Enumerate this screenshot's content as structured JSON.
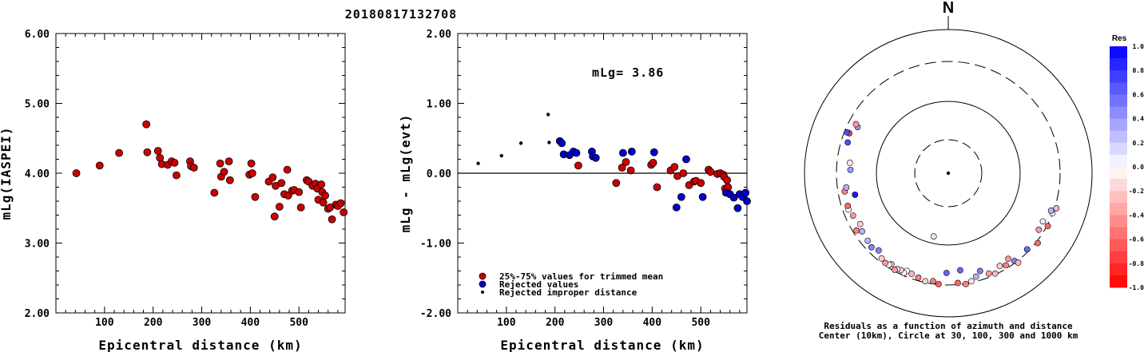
{
  "title": "20180817132708",
  "colors": {
    "red": "#cc0000",
    "blue": "#0000cc",
    "black": "#000000"
  },
  "chart_data": [
    {
      "type": "scatter",
      "xlabel": "Epicentral distance (km)",
      "ylabel": "mLg(IASPEI)",
      "xlim": [
        0,
        595
      ],
      "ylim": [
        2.0,
        6.0
      ],
      "xticks": [
        "100",
        "200",
        "300",
        "400",
        "500"
      ],
      "yticks": [
        "2.00",
        "3.00",
        "4.00",
        "5.00",
        "6.00"
      ],
      "points": [
        [
          42,
          4.0
        ],
        [
          90,
          4.11
        ],
        [
          130,
          4.29
        ],
        [
          186,
          4.7
        ],
        [
          188,
          4.3
        ],
        [
          210,
          4.32
        ],
        [
          214,
          4.22
        ],
        [
          218,
          4.13
        ],
        [
          230,
          4.12
        ],
        [
          238,
          4.17
        ],
        [
          244,
          4.15
        ],
        [
          248,
          3.97
        ],
        [
          276,
          4.17
        ],
        [
          278,
          4.1
        ],
        [
          284,
          4.08
        ],
        [
          326,
          3.72
        ],
        [
          338,
          4.14
        ],
        [
          340,
          3.95
        ],
        [
          346,
          4.02
        ],
        [
          356,
          4.17
        ],
        [
          358,
          3.9
        ],
        [
          398,
          3.98
        ],
        [
          402,
          4.14
        ],
        [
          404,
          4.0
        ],
        [
          410,
          3.66
        ],
        [
          438,
          3.88
        ],
        [
          446,
          3.94
        ],
        [
          450,
          3.38
        ],
        [
          452,
          3.82
        ],
        [
          460,
          3.52
        ],
        [
          464,
          3.86
        ],
        [
          470,
          3.7
        ],
        [
          476,
          4.05
        ],
        [
          478,
          3.68
        ],
        [
          486,
          3.75
        ],
        [
          490,
          3.76
        ],
        [
          500,
          3.73
        ],
        [
          504,
          3.51
        ],
        [
          516,
          3.9
        ],
        [
          520,
          3.88
        ],
        [
          528,
          3.82
        ],
        [
          534,
          3.85
        ],
        [
          538,
          3.78
        ],
        [
          540,
          3.62
        ],
        [
          546,
          3.84
        ],
        [
          548,
          3.73
        ],
        [
          550,
          3.58
        ],
        [
          554,
          3.68
        ],
        [
          560,
          3.49
        ],
        [
          564,
          3.51
        ],
        [
          568,
          3.34
        ],
        [
          576,
          3.55
        ],
        [
          580,
          3.53
        ],
        [
          586,
          3.57
        ],
        [
          592,
          3.44
        ]
      ]
    },
    {
      "type": "scatter",
      "xlabel": "Epicentral distance (km)",
      "ylabel": "mLg - mLg(evt)",
      "xlim": [
        0,
        595
      ],
      "ylim": [
        -2.0,
        2.0
      ],
      "xticks": [
        "100",
        "200",
        "300",
        "400",
        "500"
      ],
      "yticks": [
        "-2.00",
        "-1.00",
        "0.00",
        "1.00",
        "2.00"
      ],
      "annotation": "mLg= 3.86",
      "legend": [
        {
          "label": "25%-75% values for trimmed mean",
          "color": "#cc0000",
          "marker": "big"
        },
        {
          "label": "Rejected values",
          "color": "#0000cc",
          "marker": "big"
        },
        {
          "label": "Rejected improper distance",
          "color": "#000000",
          "marker": "small"
        }
      ],
      "series": [
        {
          "name": "25%-75% values for trimmed mean",
          "color": "#cc0000",
          "points": [
            [
              248,
              0.11
            ],
            [
              326,
              -0.14
            ],
            [
              338,
              0.08
            ],
            [
              346,
              0.16
            ],
            [
              356,
              0.04
            ],
            [
              398,
              0.12
            ],
            [
              402,
              0.15
            ],
            [
              410,
              -0.2
            ],
            [
              438,
              0.04
            ],
            [
              446,
              0.09
            ],
            [
              452,
              -0.04
            ],
            [
              464,
              0.0
            ],
            [
              476,
              -0.17
            ],
            [
              486,
              -0.12
            ],
            [
              490,
              -0.11
            ],
            [
              500,
              -0.14
            ],
            [
              516,
              0.05
            ],
            [
              520,
              0.02
            ],
            [
              534,
              -0.01
            ],
            [
              540,
              0.0
            ],
            [
              546,
              -0.02
            ],
            [
              548,
              -0.05
            ],
            [
              550,
              -0.22
            ],
            [
              554,
              -0.1
            ],
            [
              556,
              -0.2
            ]
          ]
        },
        {
          "name": "Rejected values",
          "color": "#0000cc",
          "points": [
            [
              210,
              0.46
            ],
            [
              214,
              0.43
            ],
            [
              218,
              0.27
            ],
            [
              230,
              0.26
            ],
            [
              238,
              0.31
            ],
            [
              244,
              0.29
            ],
            [
              276,
              0.31
            ],
            [
              278,
              0.24
            ],
            [
              284,
              0.22
            ],
            [
              340,
              0.29
            ],
            [
              358,
              0.31
            ],
            [
              404,
              0.3
            ],
            [
              450,
              -0.49
            ],
            [
              460,
              -0.34
            ],
            [
              470,
              0.2
            ],
            [
              504,
              -0.34
            ],
            [
              552,
              -0.28
            ],
            [
              560,
              -0.3
            ],
            [
              568,
              -0.35
            ],
            [
              576,
              -0.5
            ],
            [
              580,
              -0.3
            ],
            [
              586,
              -0.34
            ],
            [
              592,
              -0.28
            ],
            [
              595,
              -0.4
            ]
          ]
        },
        {
          "name": "Rejected improper distance",
          "color": "#000000",
          "points": [
            [
              42,
              0.14
            ],
            [
              90,
              0.25
            ],
            [
              130,
              0.43
            ],
            [
              186,
              0.84
            ],
            [
              188,
              0.44
            ]
          ]
        }
      ]
    },
    {
      "type": "scatter",
      "subtype": "polar",
      "north_label": "N",
      "caption_line1": "Residuals as a function of azimuth and distance",
      "caption_line2": "Center (10km), Circle at 30, 100, 300 and 1000 km",
      "colorbar_title": "Res",
      "colorbar_ticks": [
        "1.0",
        "0.8",
        "0.6",
        "0.4",
        "0.2",
        "0.0",
        "-0.2",
        "-0.4",
        "-0.6",
        "-0.8",
        "-1.0"
      ],
      "rings_km": [
        30,
        100,
        300,
        1000
      ],
      "points": [
        [
          193,
          80,
          0.1
        ],
        [
          128,
          380,
          -0.6
        ],
        [
          122,
          305,
          -0.4
        ],
        [
          117,
          300,
          0.1
        ],
        [
          143,
          340,
          0.5
        ],
        [
          173,
          230,
          0.6
        ],
        [
          108,
          380,
          -0.3
        ],
        [
          134,
          335,
          0.6
        ],
        [
          111,
          355,
          -0.1
        ],
        [
          110,
          332,
          0.3
        ],
        [
          145,
          285,
          -0.4
        ],
        [
          118,
          370,
          -0.6
        ],
        [
          148,
          325,
          -0.5
        ],
        [
          142,
          380,
          -0.3
        ],
        [
          151,
          300,
          -0.2
        ],
        [
          155,
          348,
          -0.3
        ],
        [
          158,
          320,
          -0.4
        ],
        [
          162,
          270,
          0.5
        ],
        [
          165,
          310,
          0.3
        ],
        [
          168,
          345,
          -0.1
        ],
        [
          171,
          365,
          -0.5
        ],
        [
          175,
          342,
          -0.6
        ],
        [
          181,
          245,
          0.6
        ],
        [
          185,
          355,
          -0.6
        ],
        [
          188,
          330,
          -0.5
        ],
        [
          192,
          345,
          -0.2
        ],
        [
          196,
          325,
          -0.5
        ],
        [
          200,
          310,
          -0.3
        ],
        [
          203,
          300,
          0.0
        ],
        [
          204,
          330,
          0.0
        ],
        [
          206,
          317,
          -0.2
        ],
        [
          208,
          325,
          0.1
        ],
        [
          209,
          345,
          -0.4
        ],
        [
          212,
          312,
          -0.3
        ],
        [
          213,
          330,
          0.0
        ],
        [
          215,
          336,
          -0.4
        ],
        [
          218,
          320,
          -0.2
        ],
        [
          222,
          280,
          0.5
        ],
        [
          226,
          305,
          0.5
        ],
        [
          230,
          290,
          0.3
        ],
        [
          236,
          280,
          0.3
        ],
        [
          238,
          320,
          -0.5
        ],
        [
          240,
          260,
          -0.2
        ],
        [
          246,
          282,
          -0.4
        ],
        [
          250,
          300,
          0.0
        ],
        [
          252,
          295,
          -0.6
        ],
        [
          257,
          214,
          0.9
        ],
        [
          260,
          290,
          -0.5
        ],
        [
          262,
          270,
          0.3
        ],
        [
          272,
          230,
          0.4
        ],
        [
          276,
          238,
          -0.1
        ],
        [
          287,
          290,
          0.7
        ],
        [
          292,
          305,
          -0.7
        ],
        [
          297,
          260,
          0.4
        ],
        [
          298,
          285,
          -0.4
        ],
        [
          292,
          330,
          0.7
        ]
      ]
    }
  ]
}
